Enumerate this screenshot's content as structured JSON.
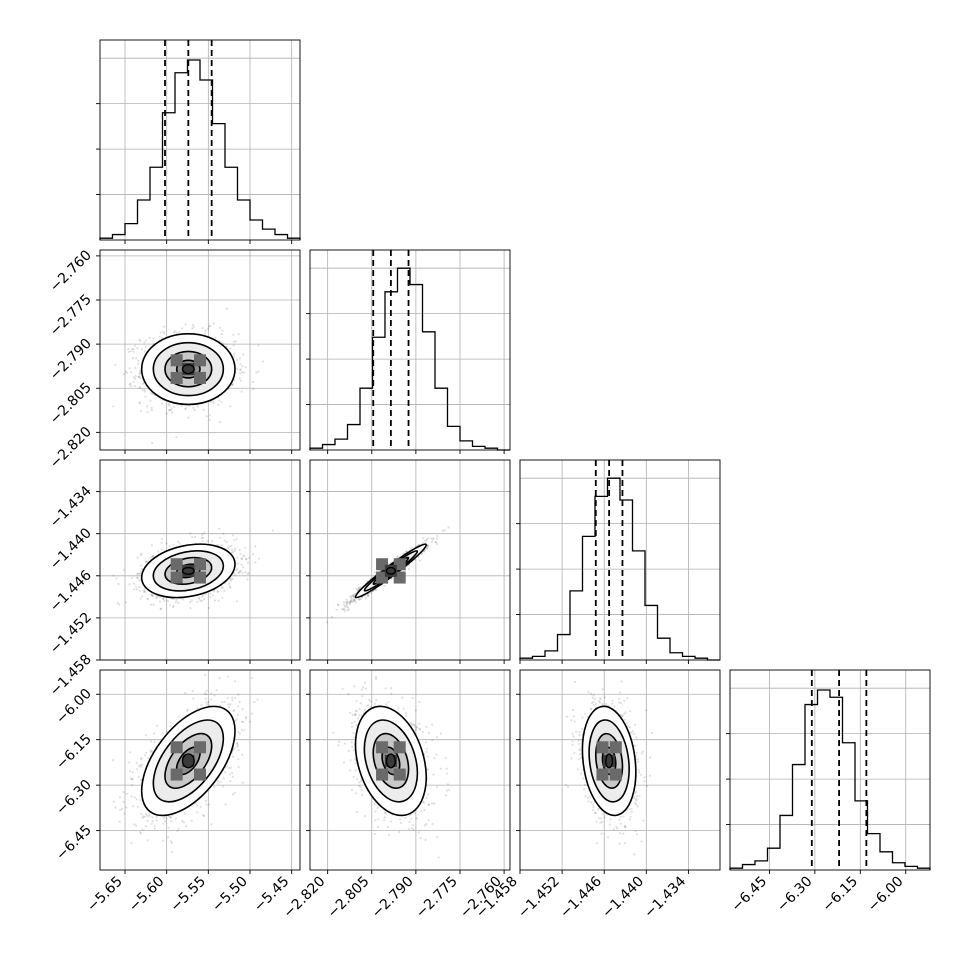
{
  "chart_data": {
    "type": "corner",
    "params": [
      {
        "median": -5.574,
        "q16": -5.602,
        "q84": -5.546,
        "sd": 0.028,
        "range": [
          -5.68,
          -5.44
        ],
        "ticks": [
          "-5.65",
          "-5.60",
          "-5.55",
          "-5.50",
          "-5.45"
        ]
      },
      {
        "median": -2.7985,
        "q16": -2.8045,
        "q84": -2.7925,
        "sd": 0.006,
        "range": [
          -2.826,
          -2.758
        ],
        "ticks": [
          "-2.820",
          "-2.805",
          "-2.790",
          "-2.775",
          "-2.760"
        ]
      },
      {
        "median": -1.4453,
        "q16": -1.4472,
        "q84": -1.4434,
        "sd": 0.0019,
        "range": [
          -1.458,
          -1.4295
        ],
        "ticks": [
          "-1.458",
          "-1.452",
          "-1.446",
          "-1.440",
          "-1.434"
        ]
      },
      {
        "median": -6.22,
        "q16": -6.31,
        "q84": -6.13,
        "sd": 0.09,
        "range": [
          -6.58,
          -5.92
        ],
        "ticks": [
          "-6.45",
          "-6.30",
          "-6.15",
          "-6.00"
        ]
      }
    ],
    "correlations": [
      [
        1,
        0,
        0.25,
        0.55
      ],
      [
        0,
        1,
        0.97,
        -0.3
      ],
      [
        0.25,
        0.97,
        1,
        -0.2
      ],
      [
        0.55,
        -0.3,
        -0.2,
        1
      ]
    ],
    "hist_heights": [
      [
        1,
        3,
        9,
        22,
        40,
        70,
        92,
        99,
        88,
        64,
        40,
        22,
        11,
        6,
        3,
        1
      ],
      [
        1,
        3,
        6,
        14,
        34,
        62,
        87,
        100,
        91,
        65,
        34,
        13,
        5,
        2,
        1,
        0
      ],
      [
        1,
        2,
        5,
        14,
        38,
        68,
        90,
        100,
        88,
        60,
        30,
        12,
        4,
        2,
        1,
        0
      ],
      [
        1,
        3,
        5,
        12,
        30,
        58,
        91,
        99,
        95,
        70,
        38,
        20,
        10,
        4,
        2,
        1
      ]
    ],
    "hist_ylim": [
      0,
      110
    ],
    "contour_levels_sigma": [
      0.5,
      1.0,
      1.5,
      2.0
    ],
    "scatter_samples_per_panel": 1400,
    "colors": {
      "line": "#000000",
      "grid": "#b0b0b0",
      "fill": "#ffffff",
      "points": "#000000"
    }
  }
}
